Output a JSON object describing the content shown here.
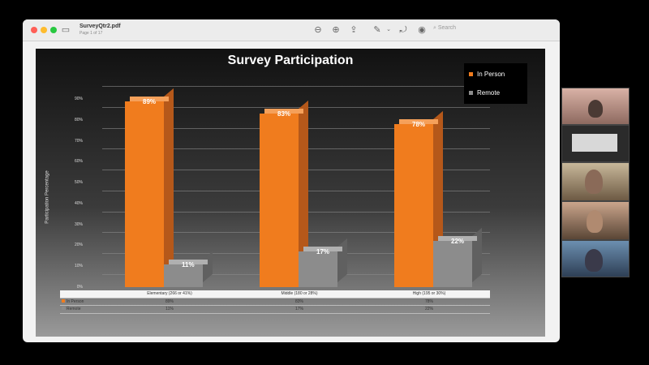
{
  "window": {
    "title": "SurveyQtr2.pdf",
    "subtitle": "Page 1 of 17",
    "search_placeholder": "Search"
  },
  "slide": {
    "title": "Survey Participation",
    "y_axis_title": "Participation Percentage"
  },
  "chart_data": {
    "type": "bar",
    "title": "Survey Participation",
    "ylabel": "Participation Percentage",
    "ylim": [
      0,
      90
    ],
    "yticks": [
      "90%",
      "80%",
      "70%",
      "60%",
      "50%",
      "40%",
      "30%",
      "20%",
      "10%",
      "0%"
    ],
    "categories": [
      "Elementary (266 or 41%)",
      "Middle (180 or 28%)",
      "High (195 or 30%)"
    ],
    "series": [
      {
        "name": "In Person",
        "values": [
          89,
          83,
          78
        ],
        "labels": [
          "89%",
          "83%",
          "78%"
        ],
        "color": "#f07c1e"
      },
      {
        "name": "Remote",
        "values": [
          11,
          17,
          22
        ],
        "labels": [
          "11%",
          "17%",
          "22%"
        ],
        "color": "#8c8c8c"
      }
    ],
    "legend": "top-right",
    "grid": true
  },
  "data_table": {
    "rows": [
      {
        "label": "In Person",
        "values": [
          "89%",
          "83%",
          "78%"
        ]
      },
      {
        "label": "Remote",
        "values": [
          "11%",
          "17%",
          "22%"
        ]
      }
    ]
  },
  "colors": {
    "in_person": "#f07c1e",
    "remote": "#8c8c8c"
  }
}
